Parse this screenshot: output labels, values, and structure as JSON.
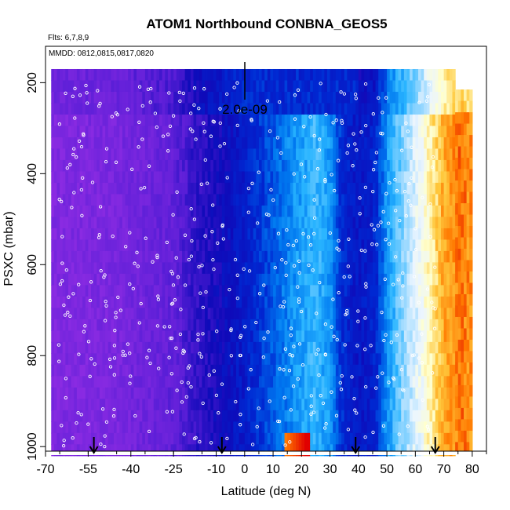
{
  "chart_data": {
    "type": "heatmap",
    "title": "ATOM1 Northbound CONBNA_GEOS5",
    "subtitle_flights": "Flts: 6,7,8,9",
    "subtitle_dates": "MMDD: 0812,0815,0817,0820",
    "xlabel": "Latitude (deg N)",
    "ylabel": "PSXC (mbar)",
    "xlim": [
      -70,
      85
    ],
    "ylim": [
      1010,
      120
    ],
    "y_reversed": true,
    "x_tick_labels": [
      "-70",
      "-55",
      "-40",
      "-25",
      "-10",
      "0",
      "10",
      "20",
      "30",
      "40",
      "50",
      "60",
      "70",
      "80"
    ],
    "x_tick_values": [
      -70,
      -55,
      -40,
      -25,
      -10,
      0,
      10,
      20,
      30,
      40,
      50,
      60,
      70,
      80
    ],
    "y_tick_labels": [
      "200",
      "400",
      "600",
      "800",
      "1000"
    ],
    "y_tick_values": [
      200,
      400,
      600,
      800,
      1000
    ],
    "scale_bar_label": "2.0e-09",
    "arrow_latitudes": [
      -53,
      -8,
      39,
      67
    ],
    "colors": {
      "purple": "#8a2be2",
      "blue": "#0018c8",
      "lightblue": "#2ab4ff",
      "pale": "#ffffd0",
      "orange": "#ff8c00",
      "red": "#e00000"
    },
    "grid": false,
    "legend": "none"
  }
}
